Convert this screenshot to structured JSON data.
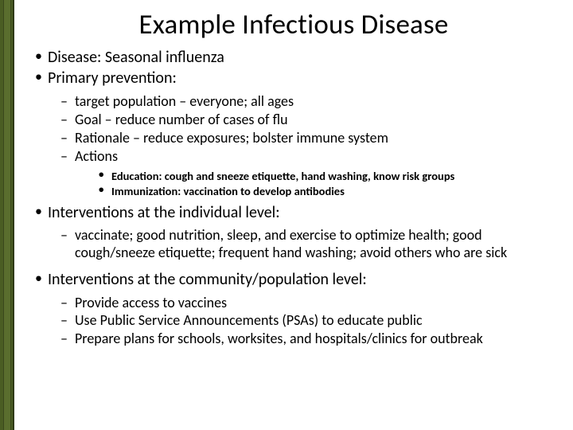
{
  "colors": {
    "sidebar_outer": "#4a5d23",
    "sidebar_inner": "#5a6e2e",
    "sidebar_border": "#2f3a15",
    "background": "#ffffff",
    "text": "#000000"
  },
  "typography": {
    "title_fontsize": 35,
    "lvl1_fontsize": 20,
    "lvl2_fontsize": 18,
    "lvl3_fontsize": 14.5,
    "font_family": "Calibri"
  },
  "title": "Example  Infectious Disease",
  "bullets": {
    "b1": "Disease:  Seasonal influenza",
    "b2": "Primary prevention:",
    "b2_sub": {
      "s1": "target population – everyone; all ages",
      "s2": "Goal – reduce number of cases of flu",
      "s3": "Rationale – reduce exposures; bolster immune system",
      "s4": "Actions",
      "s4_sub": {
        "t1": "Education: cough and sneeze etiquette, hand washing, know risk groups",
        "t2": "Immunization: vaccination to develop antibodies"
      }
    },
    "b3": "Interventions at the individual level:",
    "b3_sub": {
      "s1": "vaccinate; good nutrition, sleep, and exercise to optimize health; good cough/sneeze etiquette; frequent hand washing;  avoid others who are sick"
    },
    "b4": "Interventions at the community/population level:",
    "b4_sub": {
      "s1": "Provide access to vaccines",
      "s2": "Use Public Service Announcements (PSAs) to educate public",
      "s3": "Prepare plans for schools, worksites, and hospitals/clinics for outbreak"
    }
  }
}
